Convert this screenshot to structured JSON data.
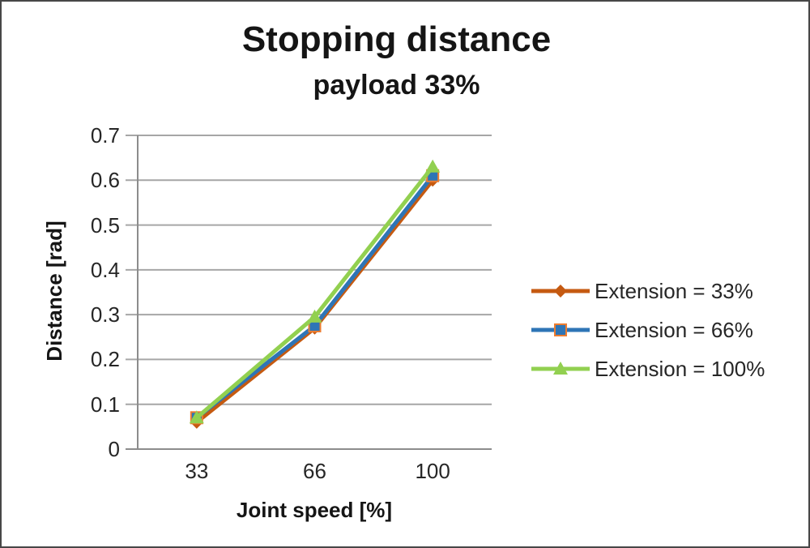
{
  "frame": {
    "background": "#ffffff",
    "border_color": "#474747"
  },
  "chart_data": {
    "type": "line",
    "title": "Stopping distance",
    "subtitle": "payload 33%",
    "xlabel": "Joint speed [%]",
    "ylabel": "Distance [rad]",
    "categories": [
      "33",
      "66",
      "100"
    ],
    "series": [
      {
        "name": "Extension = 33%",
        "values": [
          0.06,
          0.27,
          0.6
        ],
        "color": "#C55A11",
        "marker": "diamond"
      },
      {
        "name": "Extension = 66%",
        "values": [
          0.07,
          0.275,
          0.61
        ],
        "color": "#2E75B6",
        "marker": "square",
        "marker_border": "#ED7D31"
      },
      {
        "name": "Extension = 100%",
        "values": [
          0.07,
          0.295,
          0.63
        ],
        "color": "#92D050",
        "marker": "triangle"
      }
    ],
    "ylim": [
      0,
      0.7
    ],
    "ytick_values": [
      0,
      0.1,
      0.2,
      0.3,
      0.4,
      0.5,
      0.6,
      0.7
    ],
    "ytick_labels": [
      "0",
      "0.1",
      "0.2",
      "0.3",
      "0.4",
      "0.5",
      "0.6",
      "0.7"
    ],
    "grid": true,
    "gridline_color": "#A6A6A6",
    "axis_color": "#8C8C8C",
    "legend_position": "right"
  }
}
